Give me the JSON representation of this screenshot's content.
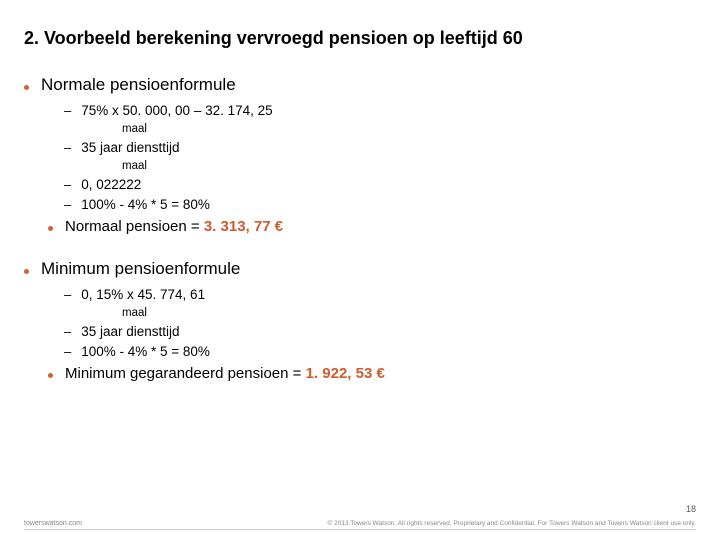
{
  "title": "2. Voorbeeld berekening vervroegd pensioen op leeftijd 60",
  "colors": {
    "bullet": "#d26039",
    "accent": "#cf5a2e"
  },
  "section1": {
    "heading": "Normale pensioenformule",
    "items": [
      "75% x 50. 000, 00 – 32. 174, 25",
      "35 jaar diensttijd",
      "0, 022222",
      "100% - 4% * 5  = 80%"
    ],
    "maal": "maal",
    "result_label": "Normaal pensioen = ",
    "result_value": "3. 313, 77 €"
  },
  "section2": {
    "heading": "Minimum pensioenformule",
    "items": [
      "0, 15% x 45. 774, 61",
      "35 jaar diensttijd",
      "100% - 4% * 5  = 80%"
    ],
    "maal": "maal",
    "result_label": "Minimum gegarandeerd pensioen = ",
    "result_value": "1. 922, 53 €"
  },
  "footer": {
    "page": "18",
    "left": "towerswatson.com",
    "right": "© 2013 Towers Watson. All rights reserved. Proprietary and Confidential. For Towers Watson and Towers Watson client use only."
  }
}
